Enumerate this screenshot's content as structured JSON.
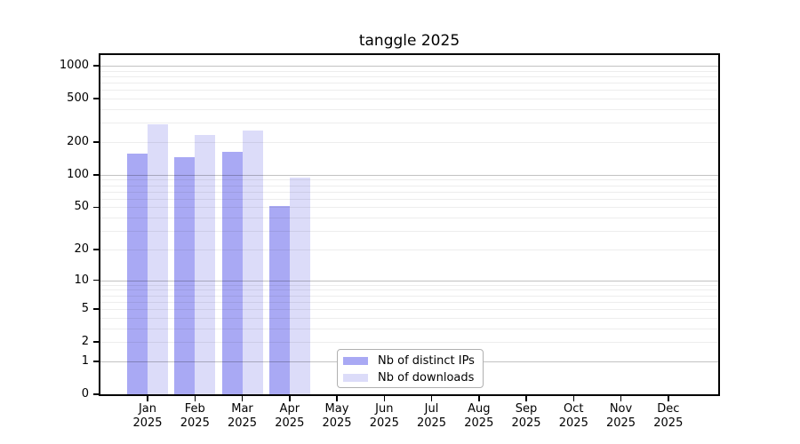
{
  "chart_data": {
    "type": "bar",
    "title": "tanggle 2025",
    "x_year": "2025",
    "months": [
      "Jan",
      "Feb",
      "Mar",
      "Apr",
      "May",
      "Jun",
      "Jul",
      "Aug",
      "Sep",
      "Oct",
      "Nov",
      "Dec"
    ],
    "series": [
      {
        "name": "Nb of distinct IPs",
        "color": "#a9a9f4",
        "values": [
          157,
          146,
          163,
          51,
          0,
          0,
          0,
          0,
          0,
          0,
          0,
          0
        ]
      },
      {
        "name": "Nb of downloads",
        "color": "#dcdcf9",
        "values": [
          289,
          233,
          256,
          94,
          0,
          0,
          0,
          0,
          0,
          0,
          0,
          0
        ]
      }
    ],
    "y_scale": "log1p",
    "y_ticks": [
      0,
      1,
      2,
      5,
      10,
      20,
      50,
      100,
      200,
      500,
      1000
    ],
    "y_major_gridlines": [
      1,
      10,
      100,
      1000
    ],
    "ylim": [
      0,
      1276
    ],
    "grid": "horizontal",
    "legend_position": "bottom-center-inside"
  }
}
